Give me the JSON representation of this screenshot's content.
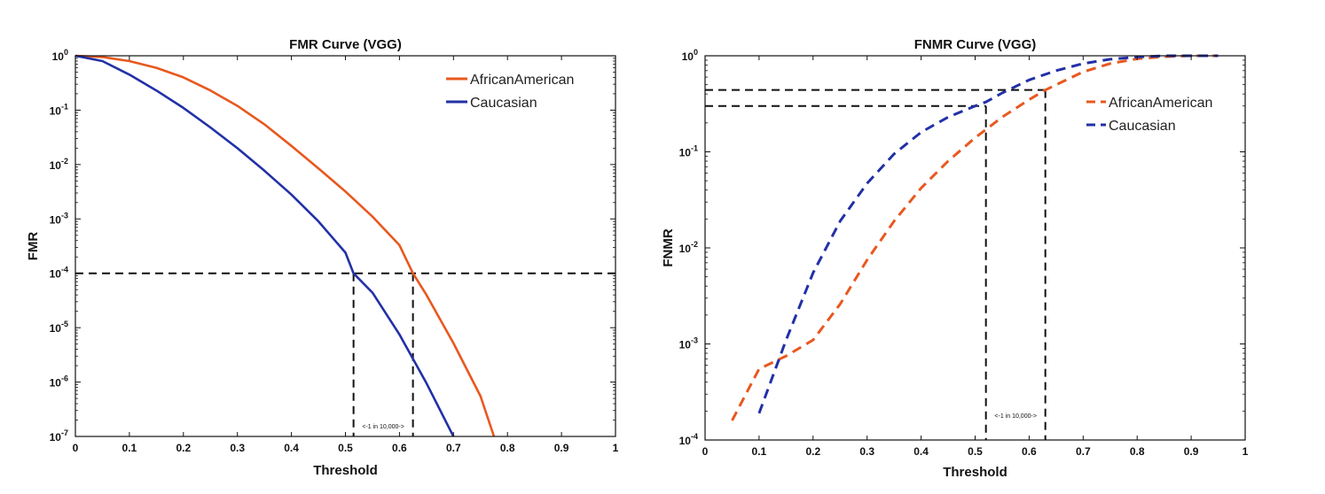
{
  "colors": {
    "african_american": "#e8581f",
    "caucasian": "#2230a6",
    "reference": "#111111"
  },
  "chart_data": [
    {
      "type": "line",
      "title": "FMR Curve (VGG)",
      "xlabel": "Threshold",
      "ylabel": "FMR",
      "xlim": [
        0,
        1
      ],
      "ylim": [
        1e-07,
        1
      ],
      "yscale": "log",
      "grid": false,
      "legend_position": "top-right",
      "x_ticks": [
        "0",
        "0.1",
        "0.2",
        "0.3",
        "0.4",
        "0.5",
        "0.6",
        "0.7",
        "0.8",
        "0.9",
        "1"
      ],
      "y_ticks": [
        {
          "base": "10",
          "exp": "0",
          "value": 1
        },
        {
          "base": "10",
          "exp": "-1",
          "value": 0.1
        },
        {
          "base": "10",
          "exp": "-2",
          "value": 0.01
        },
        {
          "base": "10",
          "exp": "-3",
          "value": 0.001
        },
        {
          "base": "10",
          "exp": "-4",
          "value": 0.0001
        },
        {
          "base": "10",
          "exp": "-5",
          "value": 1e-05
        },
        {
          "base": "10",
          "exp": "-6",
          "value": 1e-06
        },
        {
          "base": "10",
          "exp": "-7",
          "value": 1e-07
        }
      ],
      "series": [
        {
          "name": "AfricanAmerican",
          "style": "solid",
          "points": [
            [
              0,
              1
            ],
            [
              0.05,
              0.95
            ],
            [
              0.1,
              0.8
            ],
            [
              0.15,
              0.6
            ],
            [
              0.2,
              0.4
            ],
            [
              0.25,
              0.23
            ],
            [
              0.3,
              0.12
            ],
            [
              0.35,
              0.055
            ],
            [
              0.4,
              0.022
            ],
            [
              0.45,
              0.0085
            ],
            [
              0.5,
              0.0032
            ],
            [
              0.55,
              0.0011
            ],
            [
              0.6,
              0.00033
            ],
            [
              0.625,
              0.0001
            ],
            [
              0.65,
              4e-05
            ],
            [
              0.7,
              5.2e-06
            ],
            [
              0.75,
              5.5e-07
            ],
            [
              0.775,
              1e-07
            ]
          ]
        },
        {
          "name": "Caucasian",
          "style": "solid",
          "points": [
            [
              0,
              1
            ],
            [
              0.05,
              0.8
            ],
            [
              0.1,
              0.45
            ],
            [
              0.15,
              0.23
            ],
            [
              0.2,
              0.11
            ],
            [
              0.25,
              0.048
            ],
            [
              0.3,
              0.02
            ],
            [
              0.35,
              0.0077
            ],
            [
              0.4,
              0.0028
            ],
            [
              0.45,
              0.0009
            ],
            [
              0.5,
              0.00024
            ],
            [
              0.515,
              0.0001
            ],
            [
              0.55,
              4.4e-05
            ],
            [
              0.6,
              7.5e-06
            ],
            [
              0.65,
              9.5e-07
            ],
            [
              0.7,
              1e-07
            ]
          ]
        }
      ],
      "reference_level": 0.0001,
      "reference_thresholds": [
        0.515,
        0.625
      ],
      "annotation": "<-1 in 10,000->"
    },
    {
      "type": "line",
      "title": "FNMR Curve (VGG)",
      "xlabel": "Threshold",
      "ylabel": "FNMR",
      "xlim": [
        0,
        1
      ],
      "ylim": [
        0.0001,
        1
      ],
      "yscale": "log",
      "grid": false,
      "legend_position": "top-right",
      "x_ticks": [
        "0",
        "0.1",
        "0.2",
        "0.3",
        "0.4",
        "0.5",
        "0.6",
        "0.7",
        "0.8",
        "0.9",
        "1"
      ],
      "y_ticks": [
        {
          "base": "10",
          "exp": "0",
          "value": 1
        },
        {
          "base": "10",
          "exp": "-1",
          "value": 0.1
        },
        {
          "base": "10",
          "exp": "-2",
          "value": 0.01
        },
        {
          "base": "10",
          "exp": "-3",
          "value": 0.001
        },
        {
          "base": "10",
          "exp": "-4",
          "value": 0.0001
        }
      ],
      "series": [
        {
          "name": "AfricanAmerican",
          "style": "dashed",
          "points": [
            [
              0.05,
              0.00016
            ],
            [
              0.1,
              0.00055
            ],
            [
              0.15,
              0.00075
            ],
            [
              0.2,
              0.0011
            ],
            [
              0.25,
              0.0026
            ],
            [
              0.3,
              0.0075
            ],
            [
              0.35,
              0.019
            ],
            [
              0.4,
              0.042
            ],
            [
              0.45,
              0.08
            ],
            [
              0.5,
              0.14
            ],
            [
              0.55,
              0.23
            ],
            [
              0.6,
              0.35
            ],
            [
              0.63,
              0.44
            ],
            [
              0.65,
              0.5
            ],
            [
              0.7,
              0.68
            ],
            [
              0.75,
              0.83
            ],
            [
              0.8,
              0.93
            ],
            [
              0.85,
              0.98
            ],
            [
              0.9,
              1
            ],
            [
              0.95,
              1
            ]
          ]
        },
        {
          "name": "Caucasian",
          "style": "dashed",
          "points": [
            [
              0.1,
              0.00019
            ],
            [
              0.15,
              0.0011
            ],
            [
              0.2,
              0.0055
            ],
            [
              0.25,
              0.019
            ],
            [
              0.3,
              0.047
            ],
            [
              0.35,
              0.095
            ],
            [
              0.4,
              0.16
            ],
            [
              0.45,
              0.23
            ],
            [
              0.5,
              0.3
            ],
            [
              0.52,
              0.33
            ],
            [
              0.55,
              0.41
            ],
            [
              0.6,
              0.56
            ],
            [
              0.65,
              0.7
            ],
            [
              0.7,
              0.83
            ],
            [
              0.75,
              0.92
            ],
            [
              0.8,
              0.97
            ],
            [
              0.85,
              1
            ],
            [
              0.9,
              1
            ],
            [
              0.95,
              1
            ]
          ]
        }
      ],
      "reference_levels": [
        0.44,
        0.3
      ],
      "reference_thresholds": [
        0.52,
        0.63
      ],
      "annotation": "<-1 in 10,000->"
    }
  ]
}
